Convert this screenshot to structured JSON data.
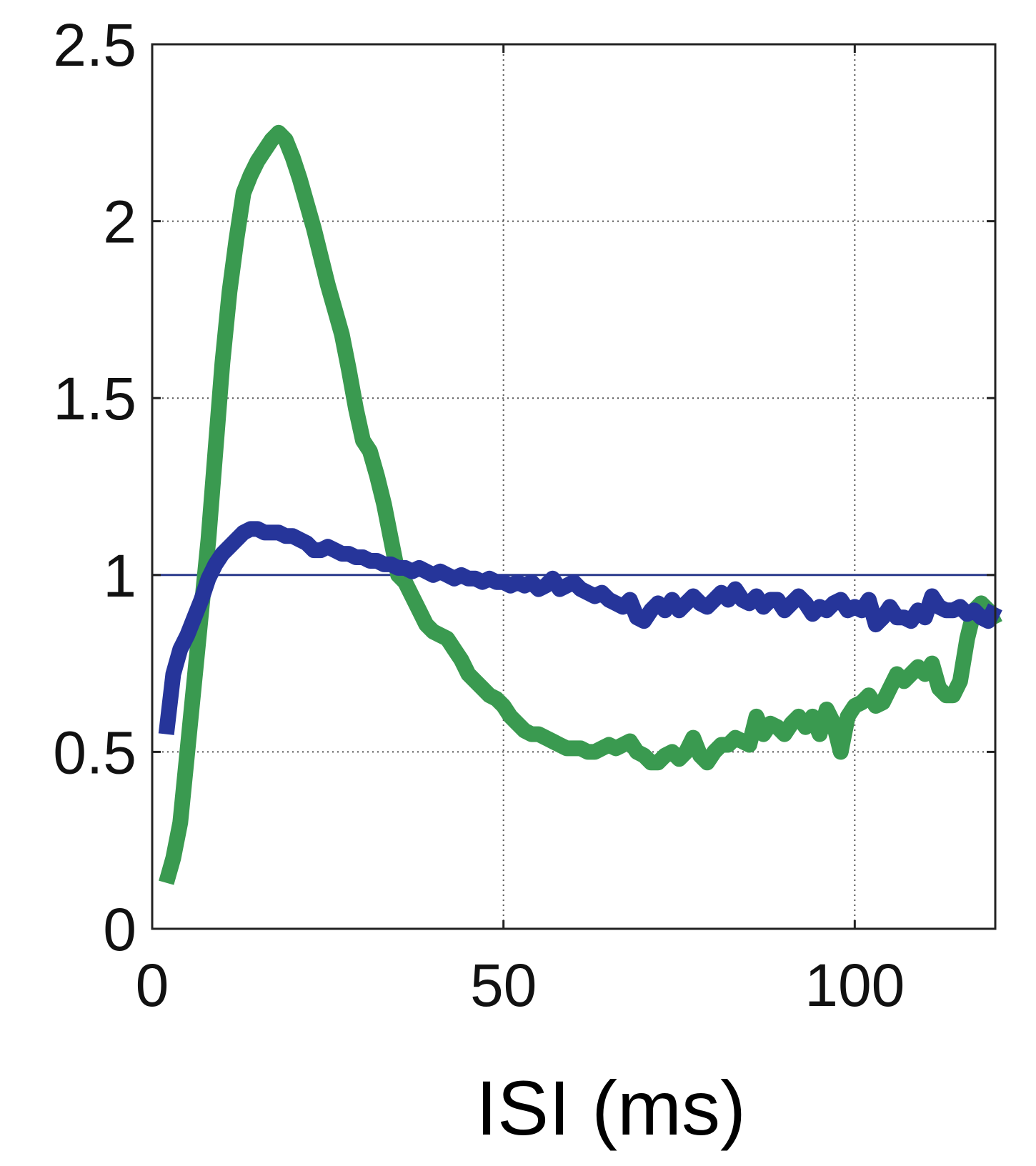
{
  "chart_data": {
    "type": "line",
    "title": "",
    "xlabel": "ISI (ms)",
    "ylabel": "",
    "xlim": [
      0,
      120
    ],
    "ylim": [
      0,
      2.5
    ],
    "x_ticks": [
      0,
      50,
      100
    ],
    "x_tick_labels": [
      "0",
      "50",
      "100"
    ],
    "y_ticks": [
      0,
      0.5,
      1,
      1.5,
      2,
      2.5
    ],
    "y_tick_labels": [
      "0",
      "0.5",
      "1",
      "1.5",
      "2",
      "2.5"
    ],
    "grid": true,
    "grid_style": "dotted",
    "reference_line": {
      "y": 1,
      "color": "#2a3a8c"
    },
    "legend": "none",
    "series": [
      {
        "color": "#3a9a50",
        "points": [
          [
            2,
            0.13
          ],
          [
            3,
            0.2
          ],
          [
            4,
            0.3
          ],
          [
            5,
            0.5
          ],
          [
            6,
            0.7
          ],
          [
            7,
            0.9
          ],
          [
            8,
            1.1
          ],
          [
            9,
            1.35
          ],
          [
            10,
            1.6
          ],
          [
            11,
            1.8
          ],
          [
            12,
            1.95
          ],
          [
            13,
            2.08
          ],
          [
            14,
            2.13
          ],
          [
            15,
            2.17
          ],
          [
            16,
            2.2
          ],
          [
            17,
            2.23
          ],
          [
            18,
            2.25
          ],
          [
            19,
            2.23
          ],
          [
            20,
            2.18
          ],
          [
            21,
            2.12
          ],
          [
            22,
            2.05
          ],
          [
            23,
            1.98
          ],
          [
            24,
            1.9
          ],
          [
            25,
            1.82
          ],
          [
            26,
            1.75
          ],
          [
            27,
            1.68
          ],
          [
            28,
            1.58
          ],
          [
            29,
            1.47
          ],
          [
            30,
            1.38
          ],
          [
            31,
            1.35
          ],
          [
            32,
            1.28
          ],
          [
            33,
            1.2
          ],
          [
            34,
            1.1
          ],
          [
            35,
            1.0
          ],
          [
            36,
            0.98
          ],
          [
            37,
            0.94
          ],
          [
            38,
            0.9
          ],
          [
            39,
            0.86
          ],
          [
            40,
            0.84
          ],
          [
            41,
            0.83
          ],
          [
            42,
            0.82
          ],
          [
            43,
            0.79
          ],
          [
            44,
            0.76
          ],
          [
            45,
            0.72
          ],
          [
            46,
            0.7
          ],
          [
            47,
            0.68
          ],
          [
            48,
            0.66
          ],
          [
            49,
            0.65
          ],
          [
            50,
            0.63
          ],
          [
            51,
            0.6
          ],
          [
            52,
            0.58
          ],
          [
            53,
            0.56
          ],
          [
            54,
            0.55
          ],
          [
            55,
            0.55
          ],
          [
            56,
            0.54
          ],
          [
            57,
            0.53
          ],
          [
            58,
            0.52
          ],
          [
            59,
            0.51
          ],
          [
            60,
            0.51
          ],
          [
            61,
            0.51
          ],
          [
            62,
            0.5
          ],
          [
            63,
            0.5
          ],
          [
            64,
            0.51
          ],
          [
            65,
            0.52
          ],
          [
            66,
            0.51
          ],
          [
            67,
            0.52
          ],
          [
            68,
            0.53
          ],
          [
            69,
            0.5
          ],
          [
            70,
            0.49
          ],
          [
            71,
            0.47
          ],
          [
            72,
            0.47
          ],
          [
            73,
            0.49
          ],
          [
            74,
            0.5
          ],
          [
            75,
            0.48
          ],
          [
            76,
            0.5
          ],
          [
            77,
            0.54
          ],
          [
            78,
            0.49
          ],
          [
            79,
            0.47
          ],
          [
            80,
            0.5
          ],
          [
            81,
            0.52
          ],
          [
            82,
            0.52
          ],
          [
            83,
            0.54
          ],
          [
            84,
            0.53
          ],
          [
            85,
            0.52
          ],
          [
            86,
            0.6
          ],
          [
            87,
            0.55
          ],
          [
            88,
            0.58
          ],
          [
            89,
            0.57
          ],
          [
            90,
            0.55
          ],
          [
            91,
            0.58
          ],
          [
            92,
            0.6
          ],
          [
            93,
            0.57
          ],
          [
            94,
            0.6
          ],
          [
            95,
            0.55
          ],
          [
            96,
            0.62
          ],
          [
            97,
            0.58
          ],
          [
            98,
            0.5
          ],
          [
            99,
            0.6
          ],
          [
            100,
            0.63
          ],
          [
            101,
            0.64
          ],
          [
            102,
            0.66
          ],
          [
            103,
            0.63
          ],
          [
            104,
            0.64
          ],
          [
            105,
            0.68
          ],
          [
            106,
            0.72
          ],
          [
            107,
            0.7
          ],
          [
            108,
            0.72
          ],
          [
            109,
            0.74
          ],
          [
            110,
            0.72
          ],
          [
            111,
            0.75
          ],
          [
            112,
            0.68
          ],
          [
            113,
            0.66
          ],
          [
            114,
            0.66
          ],
          [
            115,
            0.7
          ],
          [
            116,
            0.82
          ],
          [
            117,
            0.9
          ],
          [
            118,
            0.92
          ],
          [
            119,
            0.9
          ],
          [
            120,
            0.86
          ]
        ]
      },
      {
        "color": "#26359a",
        "points": [
          [
            2,
            0.55
          ],
          [
            3,
            0.72
          ],
          [
            4,
            0.79
          ],
          [
            5,
            0.83
          ],
          [
            6,
            0.88
          ],
          [
            7,
            0.93
          ],
          [
            8,
            0.99
          ],
          [
            9,
            1.03
          ],
          [
            10,
            1.06
          ],
          [
            11,
            1.08
          ],
          [
            12,
            1.1
          ],
          [
            13,
            1.12
          ],
          [
            14,
            1.13
          ],
          [
            15,
            1.13
          ],
          [
            16,
            1.12
          ],
          [
            17,
            1.12
          ],
          [
            18,
            1.12
          ],
          [
            19,
            1.11
          ],
          [
            20,
            1.11
          ],
          [
            21,
            1.1
          ],
          [
            22,
            1.09
          ],
          [
            23,
            1.07
          ],
          [
            24,
            1.07
          ],
          [
            25,
            1.08
          ],
          [
            26,
            1.07
          ],
          [
            27,
            1.06
          ],
          [
            28,
            1.06
          ],
          [
            29,
            1.05
          ],
          [
            30,
            1.05
          ],
          [
            31,
            1.04
          ],
          [
            32,
            1.04
          ],
          [
            33,
            1.03
          ],
          [
            34,
            1.03
          ],
          [
            35,
            1.02
          ],
          [
            36,
            1.02
          ],
          [
            37,
            1.01
          ],
          [
            38,
            1.02
          ],
          [
            39,
            1.01
          ],
          [
            40,
            1.0
          ],
          [
            41,
            1.01
          ],
          [
            42,
            1.0
          ],
          [
            43,
            0.99
          ],
          [
            44,
            1.0
          ],
          [
            45,
            0.99
          ],
          [
            46,
            0.99
          ],
          [
            47,
            0.98
          ],
          [
            48,
            0.99
          ],
          [
            49,
            0.98
          ],
          [
            50,
            0.98
          ],
          [
            51,
            0.97
          ],
          [
            52,
            0.98
          ],
          [
            53,
            0.97
          ],
          [
            54,
            0.98
          ],
          [
            55,
            0.96
          ],
          [
            56,
            0.97
          ],
          [
            57,
            0.99
          ],
          [
            58,
            0.96
          ],
          [
            59,
            0.97
          ],
          [
            60,
            0.98
          ],
          [
            61,
            0.96
          ],
          [
            62,
            0.95
          ],
          [
            63,
            0.94
          ],
          [
            64,
            0.95
          ],
          [
            65,
            0.93
          ],
          [
            66,
            0.92
          ],
          [
            67,
            0.91
          ],
          [
            68,
            0.93
          ],
          [
            69,
            0.88
          ],
          [
            70,
            0.87
          ],
          [
            71,
            0.9
          ],
          [
            72,
            0.92
          ],
          [
            73,
            0.9
          ],
          [
            74,
            0.93
          ],
          [
            75,
            0.9
          ],
          [
            76,
            0.92
          ],
          [
            77,
            0.94
          ],
          [
            78,
            0.92
          ],
          [
            79,
            0.91
          ],
          [
            80,
            0.93
          ],
          [
            81,
            0.95
          ],
          [
            82,
            0.93
          ],
          [
            83,
            0.96
          ],
          [
            84,
            0.93
          ],
          [
            85,
            0.92
          ],
          [
            86,
            0.94
          ],
          [
            87,
            0.91
          ],
          [
            88,
            0.93
          ],
          [
            89,
            0.93
          ],
          [
            90,
            0.9
          ],
          [
            91,
            0.92
          ],
          [
            92,
            0.94
          ],
          [
            93,
            0.92
          ],
          [
            94,
            0.89
          ],
          [
            95,
            0.91
          ],
          [
            96,
            0.9
          ],
          [
            97,
            0.92
          ],
          [
            98,
            0.93
          ],
          [
            99,
            0.9
          ],
          [
            100,
            0.91
          ],
          [
            101,
            0.9
          ],
          [
            102,
            0.93
          ],
          [
            103,
            0.86
          ],
          [
            104,
            0.88
          ],
          [
            105,
            0.91
          ],
          [
            106,
            0.88
          ],
          [
            107,
            0.88
          ],
          [
            108,
            0.87
          ],
          [
            109,
            0.9
          ],
          [
            110,
            0.88
          ],
          [
            111,
            0.94
          ],
          [
            112,
            0.91
          ],
          [
            113,
            0.9
          ],
          [
            114,
            0.9
          ],
          [
            115,
            0.91
          ],
          [
            116,
            0.89
          ],
          [
            117,
            0.9
          ],
          [
            118,
            0.88
          ],
          [
            119,
            0.87
          ],
          [
            120,
            0.91
          ]
        ]
      }
    ]
  }
}
